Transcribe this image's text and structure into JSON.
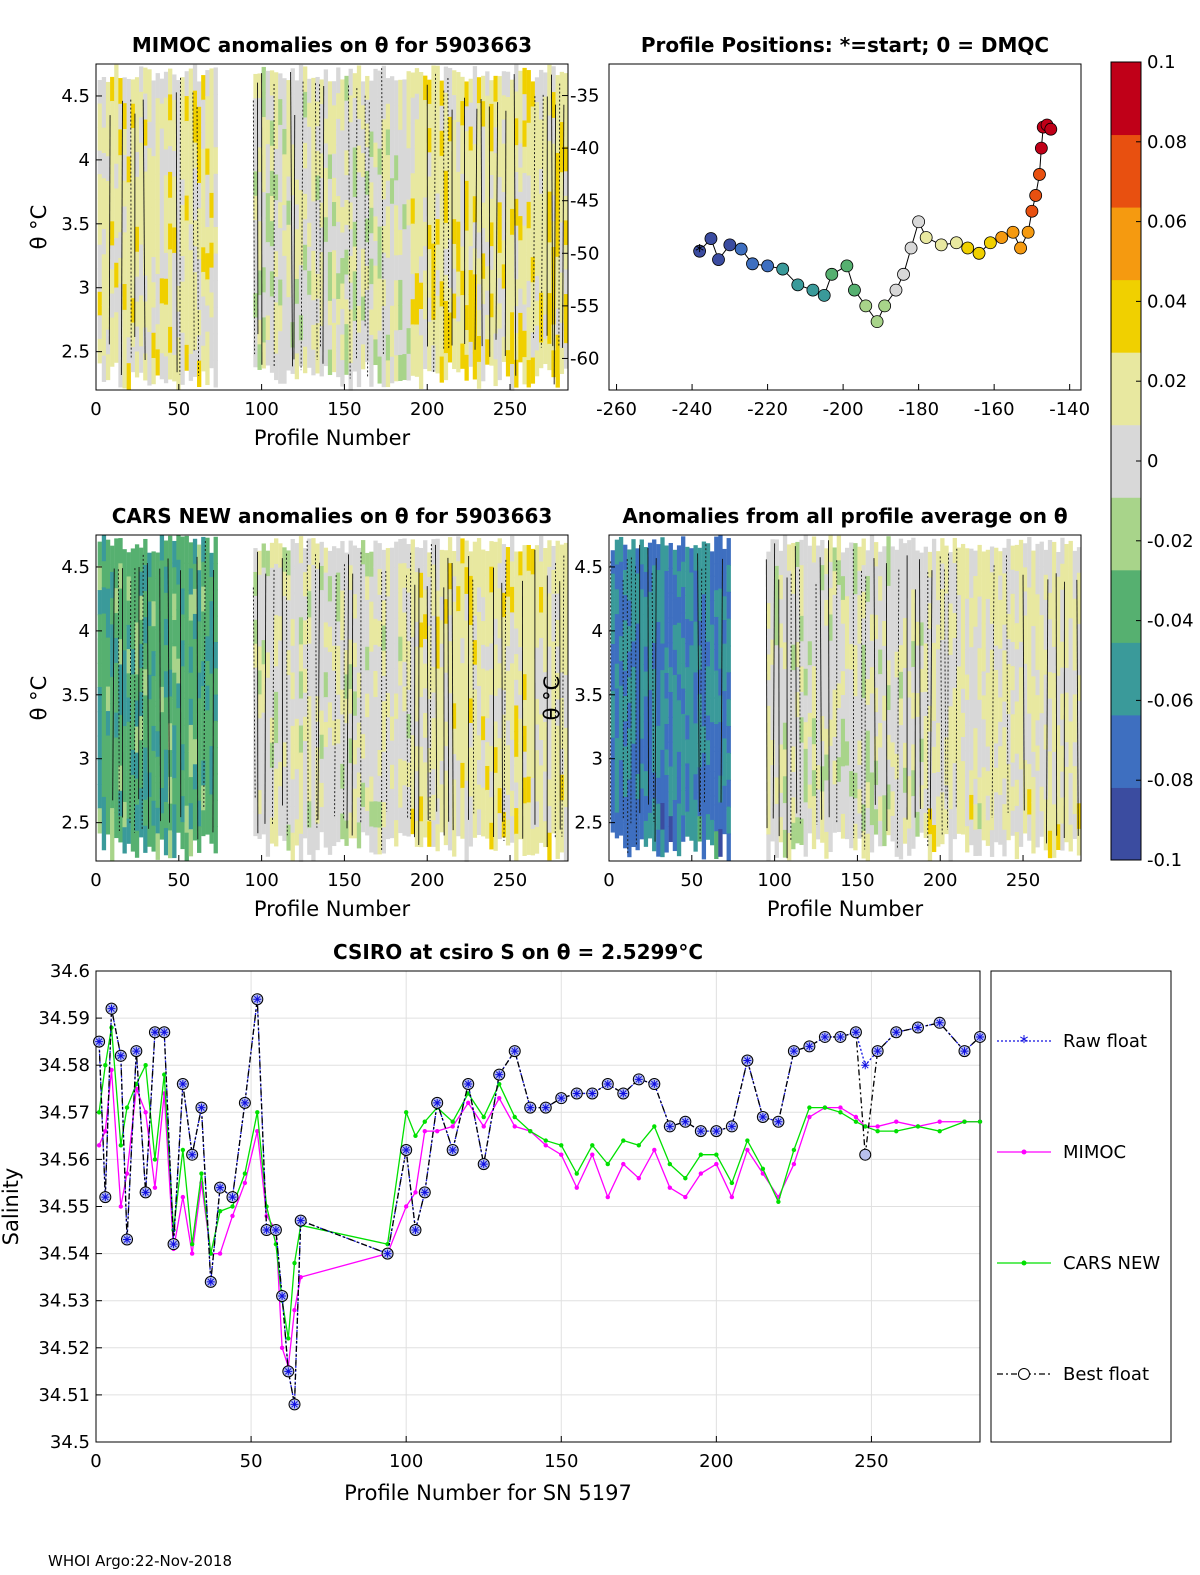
{
  "footer": "WHOI Argo:22-Nov-2018",
  "colorbar": {
    "ticks": [
      "0.1",
      "0.08",
      "0.06",
      "0.04",
      "0.02",
      "0",
      "-0.02",
      "-0.04",
      "-0.06",
      "-0.08",
      "-0.1"
    ],
    "range": [
      -0.1,
      0.1
    ],
    "colors": [
      "#3b4ca0",
      "#3e6fc0",
      "#3a9a9a",
      "#56b070",
      "#a8d48a",
      "#d8d8d8",
      "#e8e8a0",
      "#f0d000",
      "#f59a10",
      "#e85010",
      "#c00018"
    ]
  },
  "chart_data": [
    {
      "type": "heatmap",
      "title": "MIMOC anomalies on θ  for 5903663",
      "xlabel": "Profile Number",
      "ylabel": "θ °C",
      "xlim": [
        0,
        285
      ],
      "ylim": [
        2.2,
        4.75
      ],
      "xticks": [
        "0",
        "50",
        "100",
        "150",
        "200",
        "250"
      ],
      "yticks": [
        "2.5",
        "3",
        "3.5",
        "4",
        "4.5"
      ],
      "yticks_right": [
        "-35",
        "-40",
        "-45",
        "-50",
        "-55",
        "-60"
      ],
      "segments": [
        {
          "x": [
            1,
            72
          ],
          "value": 0.015
        },
        {
          "x": [
            95,
            190
          ],
          "value": 0.003
        },
        {
          "x": [
            190,
            285
          ],
          "value": 0.018
        }
      ]
    },
    {
      "type": "scatter",
      "title": "Profile Positions: *=start; 0 = DMQC",
      "xlim": [
        -262,
        -137
      ],
      "ylim": [
        -63,
        -32
      ],
      "xticks": [
        "-260",
        "-240",
        "-220",
        "-200",
        "-180",
        "-160",
        "-140"
      ],
      "track": [
        [
          -238,
          -49.8
        ],
        [
          -235,
          -48.6
        ],
        [
          -233,
          -50.6
        ],
        [
          -230,
          -49.2
        ],
        [
          -227,
          -49.6
        ],
        [
          -224,
          -51.0
        ],
        [
          -220,
          -51.2
        ],
        [
          -216,
          -51.5
        ],
        [
          -212,
          -53.0
        ],
        [
          -208,
          -53.5
        ],
        [
          -205,
          -54.0
        ],
        [
          -203,
          -52.0
        ],
        [
          -199,
          -51.2
        ],
        [
          -197,
          -53.5
        ],
        [
          -194,
          -55.0
        ],
        [
          -191,
          -56.5
        ],
        [
          -189,
          -55.0
        ],
        [
          -186,
          -53.5
        ],
        [
          -184,
          -52.0
        ],
        [
          -182,
          -49.5
        ],
        [
          -180,
          -47.0
        ],
        [
          -178,
          -48.5
        ],
        [
          -174,
          -49.2
        ],
        [
          -170,
          -49.0
        ],
        [
          -167,
          -49.5
        ],
        [
          -164,
          -50.0
        ],
        [
          -161,
          -49.0
        ],
        [
          -158,
          -48.5
        ],
        [
          -155,
          -48.0
        ],
        [
          -153,
          -49.5
        ],
        [
          -151,
          -48.0
        ],
        [
          -150,
          -46.0
        ],
        [
          -149,
          -44.5
        ],
        [
          -148,
          -42.5
        ],
        [
          -147.5,
          -40.0
        ],
        [
          -147,
          -38.0
        ],
        [
          -146,
          -37.8
        ],
        [
          -145,
          -38.2
        ]
      ],
      "start": [
        -238,
        -49.8
      ]
    },
    {
      "type": "heatmap",
      "title": "CARS NEW anomalies on θ for 5903663",
      "xlabel": "Profile Number",
      "ylabel": "θ °C",
      "xlim": [
        0,
        285
      ],
      "ylim": [
        2.2,
        4.75
      ],
      "xticks": [
        "0",
        "50",
        "100",
        "150",
        "200",
        "250"
      ],
      "yticks": [
        "2.5",
        "3",
        "3.5",
        "4",
        "4.5"
      ],
      "segments": [
        {
          "x": [
            1,
            72
          ],
          "value": -0.04
        },
        {
          "x": [
            95,
            190
          ],
          "value": 0.003
        },
        {
          "x": [
            190,
            285
          ],
          "value": 0.015
        }
      ]
    },
    {
      "type": "heatmap",
      "title": "Anomalies from all profile average on θ",
      "xlabel": "Profile Number",
      "ylabel": "θ °C",
      "xlim": [
        0,
        285
      ],
      "ylim": [
        2.2,
        4.75
      ],
      "xticks": [
        "0",
        "50",
        "100",
        "150",
        "200",
        "250"
      ],
      "yticks": [
        "2.5",
        "3",
        "3.5",
        "4",
        "4.5"
      ],
      "segments": [
        {
          "x": [
            1,
            72
          ],
          "value": -0.065
        },
        {
          "x": [
            95,
            190
          ],
          "value": 0.002
        },
        {
          "x": [
            190,
            285
          ],
          "value": 0.012
        }
      ]
    },
    {
      "type": "line",
      "title": "CSIRO at csiro S on θ = 2.5299°C",
      "xlabel": "Profile Number for SN 5197",
      "ylabel": "Salinity",
      "xlim": [
        0,
        285
      ],
      "ylim": [
        34.5,
        34.6
      ],
      "xticks": [
        "0",
        "50",
        "100",
        "150",
        "200",
        "250"
      ],
      "yticks": [
        "34.5",
        "34.51",
        "34.52",
        "34.53",
        "34.54",
        "34.55",
        "34.56",
        "34.57",
        "34.58",
        "34.59",
        "34.6"
      ],
      "x": [
        1,
        3,
        5,
        8,
        10,
        13,
        16,
        19,
        22,
        25,
        28,
        31,
        34,
        37,
        40,
        44,
        48,
        52,
        55,
        58,
        60,
        62,
        64,
        66,
        94,
        100,
        103,
        106,
        110,
        115,
        120,
        125,
        130,
        135,
        140,
        145,
        150,
        155,
        160,
        165,
        170,
        175,
        180,
        185,
        190,
        195,
        200,
        205,
        210,
        215,
        220,
        225,
        230,
        235,
        240,
        245,
        248,
        252,
        258,
        265,
        272,
        280,
        285
      ],
      "series": [
        {
          "name": "Raw float",
          "values": [
            34.585,
            34.552,
            34.592,
            34.582,
            34.543,
            34.583,
            34.553,
            34.587,
            34.587,
            34.542,
            34.576,
            34.561,
            34.571,
            34.534,
            34.554,
            34.552,
            34.572,
            34.594,
            34.545,
            34.545,
            34.531,
            34.515,
            34.508,
            34.547,
            34.54,
            34.562,
            34.545,
            34.553,
            34.572,
            34.562,
            34.576,
            34.559,
            34.578,
            34.583,
            34.571,
            34.571,
            34.573,
            34.574,
            34.574,
            34.576,
            34.574,
            34.577,
            34.576,
            34.567,
            34.568,
            34.566,
            34.566,
            34.567,
            34.581,
            34.569,
            34.568,
            34.583,
            34.584,
            34.586,
            34.586,
            34.587,
            34.58,
            34.583,
            34.587,
            34.588,
            34.589,
            34.583,
            34.586
          ]
        },
        {
          "name": "MIMOC",
          "values": [
            34.563,
            34.566,
            34.579,
            34.55,
            34.557,
            34.575,
            34.57,
            34.554,
            34.574,
            34.541,
            34.552,
            34.54,
            34.555,
            34.54,
            34.54,
            34.548,
            34.555,
            34.566,
            34.548,
            34.545,
            34.52,
            34.516,
            34.528,
            34.535,
            34.54,
            34.55,
            34.553,
            34.566,
            34.566,
            34.567,
            34.572,
            34.567,
            34.573,
            34.567,
            34.566,
            34.563,
            34.561,
            34.554,
            34.561,
            34.552,
            34.559,
            34.556,
            34.562,
            34.554,
            34.552,
            34.557,
            34.559,
            34.552,
            34.562,
            34.557,
            34.552,
            34.559,
            34.569,
            34.571,
            34.571,
            34.569,
            34.567,
            34.567,
            34.568,
            34.567,
            34.568,
            34.568,
            34.568
          ]
        },
        {
          "name": "CARS NEW",
          "values": [
            34.57,
            34.58,
            34.588,
            34.563,
            34.571,
            34.576,
            34.58,
            34.56,
            34.578,
            34.545,
            34.562,
            34.542,
            34.557,
            34.54,
            34.549,
            34.55,
            34.557,
            34.57,
            34.55,
            34.542,
            34.53,
            34.522,
            34.538,
            34.546,
            34.542,
            34.57,
            34.565,
            34.568,
            34.571,
            34.568,
            34.574,
            34.569,
            34.576,
            34.569,
            34.566,
            34.564,
            34.563,
            34.557,
            34.563,
            34.559,
            34.564,
            34.563,
            34.567,
            34.559,
            34.556,
            34.561,
            34.561,
            34.555,
            34.564,
            34.558,
            34.551,
            34.562,
            34.571,
            34.571,
            34.57,
            34.568,
            34.567,
            34.566,
            34.566,
            34.567,
            34.566,
            34.568,
            34.568
          ]
        },
        {
          "name": "Best float",
          "values": [
            34.585,
            34.552,
            34.592,
            34.582,
            34.543,
            34.583,
            34.553,
            34.587,
            34.587,
            34.542,
            34.576,
            34.561,
            34.571,
            34.534,
            34.554,
            34.552,
            34.572,
            34.594,
            34.545,
            34.545,
            34.531,
            34.515,
            34.508,
            34.547,
            34.54,
            34.562,
            34.545,
            34.553,
            34.572,
            34.562,
            34.576,
            34.559,
            34.578,
            34.583,
            34.571,
            34.571,
            34.573,
            34.574,
            34.574,
            34.576,
            34.574,
            34.577,
            34.576,
            34.567,
            34.568,
            34.566,
            34.566,
            34.567,
            34.581,
            34.569,
            34.568,
            34.583,
            34.584,
            34.586,
            34.586,
            34.587,
            34.561,
            34.583,
            34.587,
            34.588,
            34.589,
            34.583,
            34.586
          ]
        }
      ],
      "legend": [
        "Raw float",
        "MIMOC",
        "CARS NEW",
        "Best float"
      ],
      "colors": {
        "raw": "#1010e0",
        "mimoc": "#ff00ff",
        "cars": "#00e000",
        "best": "#000000"
      }
    }
  ]
}
